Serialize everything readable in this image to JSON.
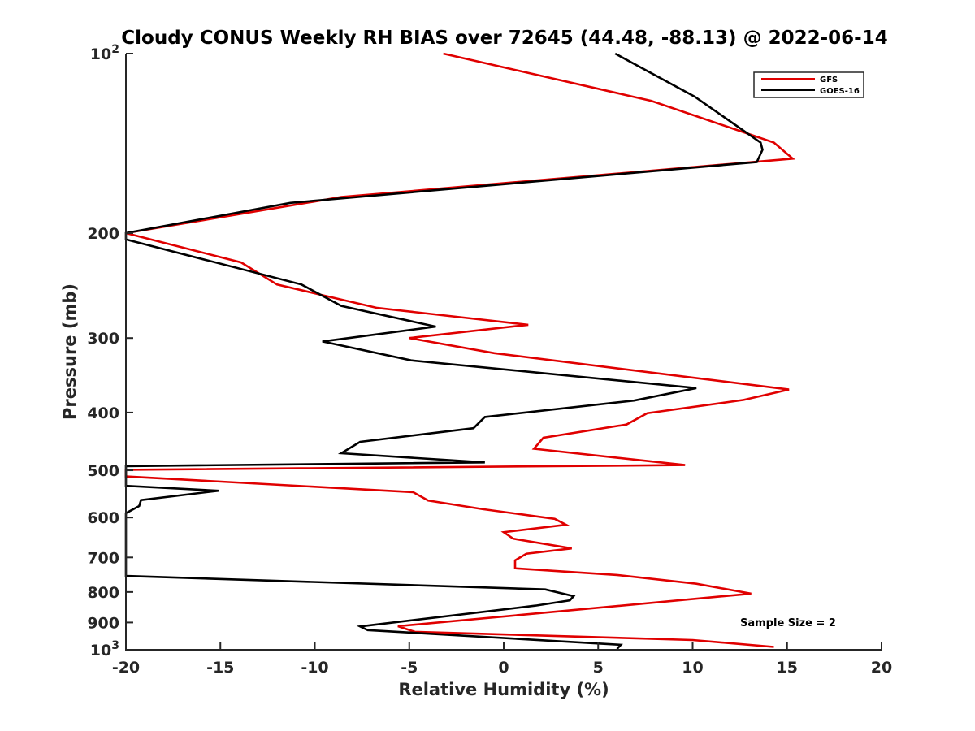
{
  "chart_data": {
    "type": "line",
    "title": "Cloudy CONUS Weekly RH BIAS over 72645 (44.48, -88.13) @ 2022-06-14",
    "xlabel": "Relative Humidity (%)",
    "ylabel": "Pressure (mb)",
    "xlim": [
      -20,
      20
    ],
    "ylim": [
      100,
      1000
    ],
    "y_scale": "log",
    "y_reversed": true,
    "grid": false,
    "legend_position": "top-right",
    "x_ticks": [
      "-20",
      "-15",
      "-10",
      "-5",
      "0",
      "5",
      "10",
      "15",
      "20"
    ],
    "y_ticks": [
      {
        "value": 100,
        "base": "10",
        "exp": "2"
      },
      {
        "value": 200,
        "label": "200"
      },
      {
        "value": 300,
        "label": "300"
      },
      {
        "value": 400,
        "label": "400"
      },
      {
        "value": 500,
        "label": "500"
      },
      {
        "value": 600,
        "label": "600"
      },
      {
        "value": 700,
        "label": "700"
      },
      {
        "value": 800,
        "label": "800"
      },
      {
        "value": 900,
        "label": "900"
      },
      {
        "value": 1000,
        "base": "10",
        "exp": "3"
      }
    ],
    "annotation": "Sample Size = 2",
    "series": [
      {
        "name": "GFS",
        "color": "#e00000",
        "points": [
          [
            -3.2,
            100
          ],
          [
            7.8,
            120
          ],
          [
            14.3,
            141
          ],
          [
            15.3,
            150
          ],
          [
            -8.6,
            174
          ],
          [
            -20.0,
            200
          ],
          [
            -13.9,
            224
          ],
          [
            -12.0,
            244
          ],
          [
            -6.7,
            267
          ],
          [
            1.3,
            285
          ],
          [
            -5.0,
            300
          ],
          [
            -0.5,
            318
          ],
          [
            15.1,
            366
          ],
          [
            12.7,
            381
          ],
          [
            7.6,
            401
          ],
          [
            6.5,
            419
          ],
          [
            2.1,
            441
          ],
          [
            1.6,
            460
          ],
          [
            9.6,
            490
          ],
          [
            -20.0,
            499
          ],
          [
            -20.0,
            512
          ],
          [
            -4.8,
            544
          ],
          [
            -4.0,
            562
          ],
          [
            -1.1,
            581
          ],
          [
            2.7,
            603
          ],
          [
            3.3,
            617
          ],
          [
            0.0,
            635
          ],
          [
            0.5,
            651
          ],
          [
            3.6,
            676
          ],
          [
            1.2,
            690
          ],
          [
            0.6,
            708
          ],
          [
            0.6,
            730
          ],
          [
            6.0,
            749
          ],
          [
            10.2,
            775
          ],
          [
            13.1,
            805
          ],
          [
            -5.6,
            913
          ],
          [
            -4.7,
            933
          ],
          [
            10.0,
            963
          ],
          [
            14.3,
            989
          ]
        ]
      },
      {
        "name": "GOES-16",
        "color": "#000000",
        "points": [
          [
            5.9,
            100
          ],
          [
            10.1,
            118
          ],
          [
            13.6,
            141
          ],
          [
            13.7,
            145
          ],
          [
            13.4,
            152
          ],
          [
            -11.3,
            178
          ],
          [
            -20.0,
            200
          ],
          [
            -20.0,
            205
          ],
          [
            -10.7,
            244
          ],
          [
            -8.6,
            265
          ],
          [
            -3.6,
            287
          ],
          [
            -9.6,
            304
          ],
          [
            -4.9,
            327
          ],
          [
            10.2,
            364
          ],
          [
            6.9,
            382
          ],
          [
            -1.0,
            407
          ],
          [
            -1.6,
            425
          ],
          [
            -7.6,
            448
          ],
          [
            -8.6,
            468
          ],
          [
            -1.0,
            485
          ],
          [
            -20.0,
            492
          ],
          [
            -20.0,
            531
          ],
          [
            -15.1,
            541
          ],
          [
            -19.2,
            561
          ],
          [
            -19.3,
            574
          ],
          [
            -20.0,
            590
          ],
          [
            -20.0,
            752
          ],
          [
            2.2,
            792
          ],
          [
            3.7,
            813
          ],
          [
            3.5,
            826
          ],
          [
            1.7,
            843
          ],
          [
            -7.6,
            914
          ],
          [
            -7.2,
            927
          ],
          [
            6.2,
            981
          ],
          [
            6.0,
            997
          ]
        ]
      }
    ]
  }
}
